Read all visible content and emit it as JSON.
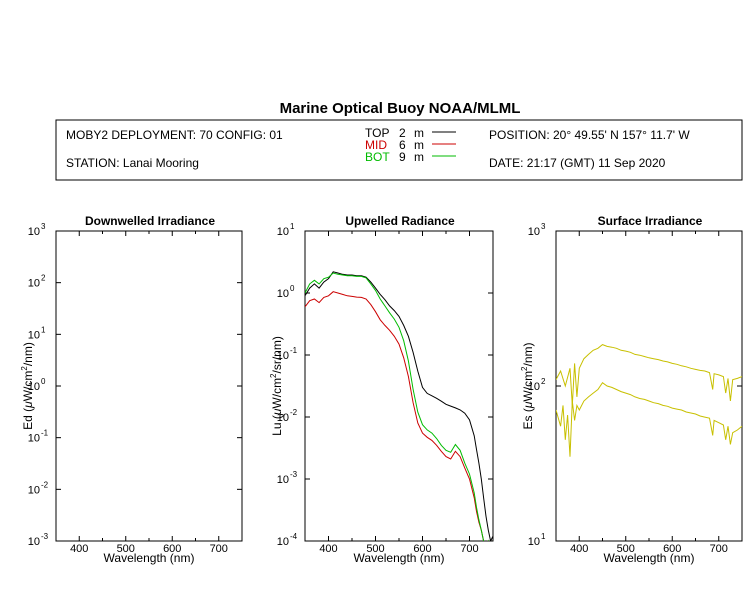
{
  "header": {
    "title": "Marine Optical Buoy NOAA/MLML",
    "deployment": "MOBY2 DEPLOYMENT: 70 CONFIG: 01",
    "station": "STATION: Lanai Mooring",
    "position": "POSITION: 20° 49.55' N   157° 11.7' W",
    "date": "DATE: 21:17 (GMT) 11 Sep 2020",
    "legend": [
      {
        "name": "TOP",
        "depth": "2",
        "unit": "m",
        "color": "#000000"
      },
      {
        "name": "MID",
        "depth": "6",
        "unit": "m",
        "color": "#cc0000"
      },
      {
        "name": "BOT",
        "depth": "9",
        "unit": "m",
        "color": "#00bb00"
      }
    ]
  },
  "colors": {
    "surface": "#c8c000"
  },
  "chart_data": [
    {
      "type": "line",
      "title": "Downwelled Irradiance",
      "xlabel": "Wavelength (nm)",
      "ylabel_pre": "Ed  (",
      "ylabel_mu": "μ",
      "ylabel_mid": "W/cm",
      "ylabel_sup": "2",
      "ylabel_post": "/nm)",
      "yscale": "log",
      "xlim": [
        350,
        750
      ],
      "ylim": [
        0.001,
        1000
      ],
      "xticks": [
        "400",
        "500",
        "600",
        "700"
      ],
      "ytick_exponents": [
        "-3",
        "-2",
        "-1",
        "0",
        "1",
        "2",
        "3"
      ],
      "series": []
    },
    {
      "type": "line",
      "title": "Upwelled Radiance",
      "xlabel": "Wavelength (nm)",
      "ylabel_pre": "Lu  (",
      "ylabel_mu": "μ",
      "ylabel_mid": "W/cm",
      "ylabel_sup": "2",
      "ylabel_post": "/sr/nm)",
      "yscale": "log",
      "xlim": [
        350,
        750
      ],
      "ylim": [
        0.0001,
        10
      ],
      "xticks": [
        "400",
        "500",
        "600",
        "700"
      ],
      "ytick_exponents": [
        "-4",
        "-3",
        "-2",
        "-1",
        "0",
        "1"
      ],
      "series": [
        {
          "name": "TOP",
          "color": "#000000",
          "x": [
            350,
            360,
            370,
            380,
            390,
            400,
            410,
            420,
            430,
            440,
            450,
            460,
            470,
            480,
            490,
            500,
            510,
            520,
            530,
            540,
            550,
            560,
            570,
            580,
            590,
            600,
            610,
            620,
            630,
            640,
            650,
            660,
            670,
            680,
            690,
            700,
            710,
            715,
            720,
            725,
            730,
            735,
            740,
            745,
            750
          ],
          "y": [
            0.9,
            1.2,
            1.4,
            1.2,
            1.5,
            1.7,
            2.2,
            2.1,
            2.0,
            1.95,
            1.95,
            1.9,
            1.9,
            1.8,
            1.5,
            1.2,
            0.95,
            0.78,
            0.62,
            0.52,
            0.42,
            0.3,
            0.2,
            0.11,
            0.055,
            0.03,
            0.024,
            0.022,
            0.02,
            0.018,
            0.016,
            0.015,
            0.014,
            0.013,
            0.0115,
            0.009,
            0.005,
            0.003,
            0.0018,
            0.001,
            0.0005,
            0.00025,
            0.00015,
            0.0001,
            0.00012
          ]
        },
        {
          "name": "MID",
          "color": "#cc0000",
          "x": [
            350,
            360,
            370,
            380,
            390,
            400,
            410,
            420,
            430,
            440,
            450,
            460,
            470,
            480,
            490,
            500,
            510,
            520,
            530,
            540,
            550,
            560,
            570,
            580,
            590,
            600,
            610,
            620,
            630,
            640,
            650,
            660,
            670,
            680,
            690,
            700,
            710,
            715,
            720,
            725,
            730,
            735,
            740,
            745,
            750
          ],
          "y": [
            0.6,
            0.75,
            0.8,
            0.7,
            0.85,
            0.9,
            1.05,
            1.0,
            0.95,
            0.9,
            0.88,
            0.86,
            0.85,
            0.8,
            0.65,
            0.5,
            0.37,
            0.3,
            0.25,
            0.2,
            0.15,
            0.09,
            0.045,
            0.017,
            0.008,
            0.0055,
            0.0047,
            0.0042,
            0.0035,
            0.0028,
            0.0023,
            0.0021,
            0.0028,
            0.0023,
            0.0015,
            0.001,
            0.0005,
            0.0003,
            0.0002,
            0.00015,
            0.0001,
            8e-05,
            0.0001,
            8e-05,
            0.0001
          ]
        },
        {
          "name": "BOT",
          "color": "#00bb00",
          "x": [
            350,
            360,
            370,
            380,
            390,
            400,
            410,
            420,
            430,
            440,
            450,
            460,
            470,
            480,
            490,
            500,
            510,
            520,
            530,
            540,
            550,
            560,
            570,
            580,
            590,
            600,
            610,
            620,
            630,
            640,
            650,
            660,
            670,
            680,
            690,
            700,
            710,
            715,
            720,
            725,
            730,
            735,
            740,
            745,
            750
          ],
          "y": [
            1.0,
            1.4,
            1.6,
            1.4,
            1.7,
            1.8,
            2.1,
            2.0,
            1.95,
            1.9,
            1.9,
            1.85,
            1.85,
            1.75,
            1.4,
            1.1,
            0.8,
            0.62,
            0.48,
            0.38,
            0.28,
            0.17,
            0.08,
            0.028,
            0.012,
            0.0075,
            0.0062,
            0.0055,
            0.0045,
            0.0035,
            0.0029,
            0.0027,
            0.0036,
            0.0029,
            0.0018,
            0.0012,
            0.0006,
            0.00035,
            0.00022,
            0.00015,
            0.0001,
            8e-05,
            0.0001,
            8e-05,
            0.0001
          ]
        }
      ]
    },
    {
      "type": "line",
      "title": "Surface Irradiance",
      "xlabel": "Wavelength (nm)",
      "ylabel_pre": "Es  (",
      "ylabel_mu": "μ",
      "ylabel_mid": "W/cm",
      "ylabel_sup": "2",
      "ylabel_post": "/nm)",
      "yscale": "log",
      "xlim": [
        350,
        750
      ],
      "ylim": [
        10,
        1000
      ],
      "xticks": [
        "400",
        "500",
        "600",
        "700"
      ],
      "ytick_exponents": [
        "1",
        "2",
        "3"
      ],
      "series": [
        {
          "name": "Es upper",
          "color": "#c8c000",
          "x": [
            350,
            360,
            370,
            380,
            385,
            390,
            395,
            400,
            410,
            420,
            430,
            440,
            450,
            460,
            470,
            480,
            490,
            500,
            510,
            520,
            530,
            540,
            550,
            560,
            570,
            580,
            590,
            600,
            610,
            620,
            630,
            640,
            650,
            660,
            670,
            680,
            687,
            690,
            700,
            710,
            715,
            720,
            725,
            730,
            740,
            750
          ],
          "y": [
            110,
            125,
            100,
            130,
            75,
            140,
            85,
            130,
            150,
            160,
            170,
            175,
            185,
            180,
            178,
            175,
            170,
            168,
            165,
            160,
            158,
            155,
            152,
            150,
            148,
            145,
            143,
            140,
            138,
            135,
            133,
            130,
            128,
            126,
            125,
            122,
            95,
            120,
            118,
            115,
            90,
            112,
            80,
            110,
            112,
            115
          ]
        },
        {
          "name": "Es lower",
          "color": "#c8c000",
          "x": [
            350,
            360,
            365,
            370,
            375,
            380,
            385,
            390,
            395,
            400,
            410,
            420,
            430,
            440,
            450,
            460,
            470,
            480,
            490,
            500,
            510,
            520,
            530,
            540,
            550,
            560,
            570,
            580,
            590,
            600,
            610,
            620,
            630,
            640,
            650,
            660,
            670,
            680,
            687,
            690,
            700,
            710,
            715,
            720,
            725,
            730,
            740,
            750
          ],
          "y": [
            70,
            55,
            75,
            45,
            65,
            35,
            80,
            60,
            75,
            70,
            80,
            85,
            90,
            95,
            105,
            100,
            98,
            95,
            92,
            90,
            88,
            85,
            83,
            82,
            80,
            78,
            77,
            75,
            74,
            72,
            71,
            70,
            68,
            67,
            66,
            64,
            63,
            62,
            48,
            60,
            58,
            56,
            45,
            55,
            42,
            50,
            52,
            55
          ]
        }
      ]
    }
  ]
}
